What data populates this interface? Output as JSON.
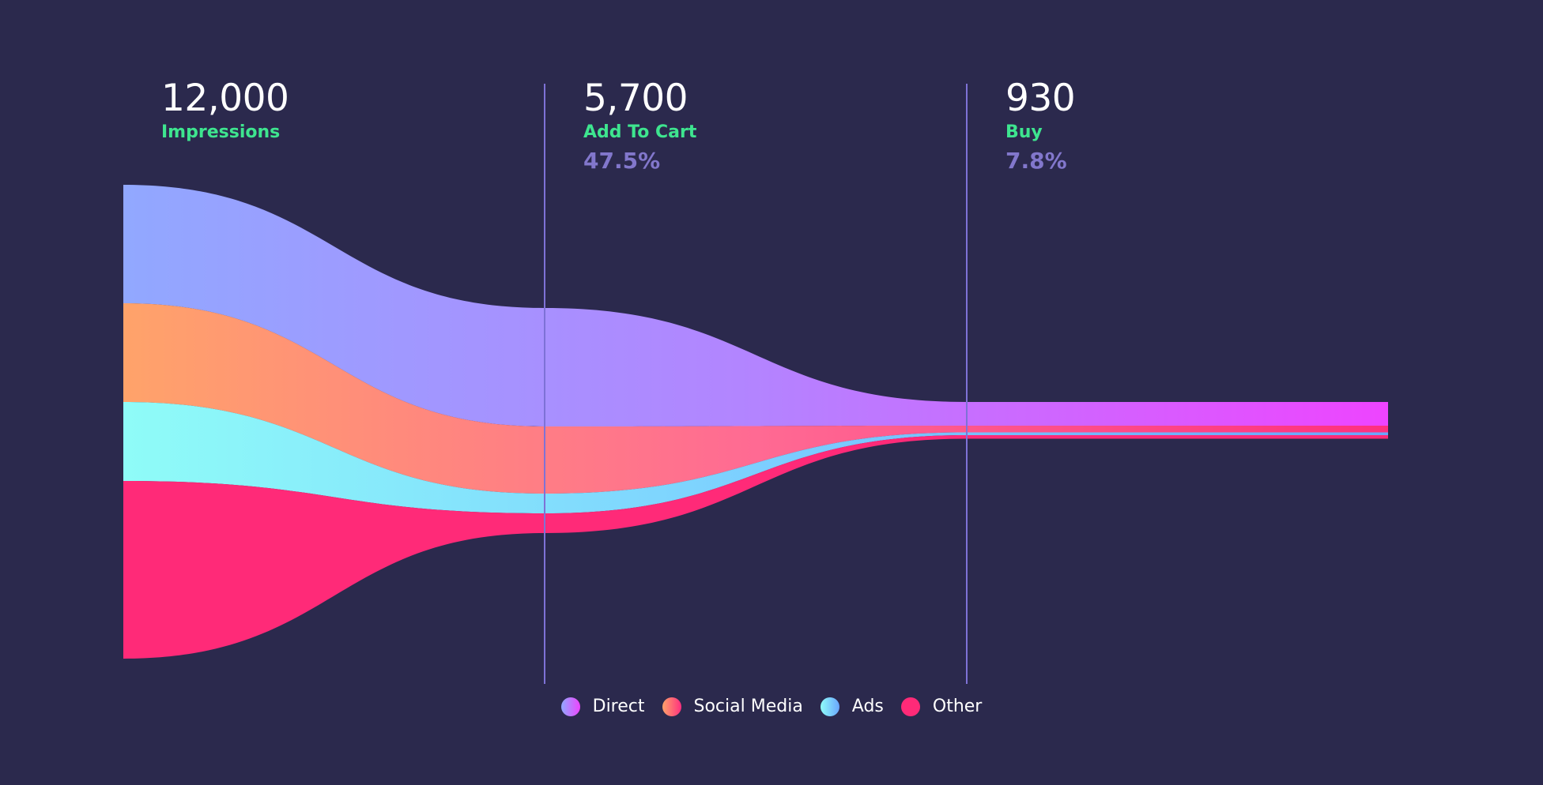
{
  "colors": {
    "background": "#2b294d",
    "divider": "#7e72d6",
    "value_text": "#ffffff",
    "label_text": "#3ee58f",
    "pct_text": "#8277cc",
    "direct": [
      "#91a8ff",
      "#b384ff",
      "#ee44ff"
    ],
    "social": [
      "#ffa36a",
      "#ff6a93",
      "#ff2f7f"
    ],
    "ads": [
      "#8ffcf8",
      "#7ccfff",
      "#6aa6ff"
    ],
    "other": [
      "#ff2a78",
      "#ff2a78",
      "#ff2a78"
    ]
  },
  "stages": [
    {
      "value": "12,000",
      "label": "Impressions",
      "pct": ""
    },
    {
      "value": "5,700",
      "label": "Add To Cart",
      "pct": "47.5%"
    },
    {
      "value": "930",
      "label": "Buy",
      "pct": "7.8%"
    }
  ],
  "legend": [
    {
      "name": "Direct",
      "icon": "direct-dot-icon"
    },
    {
      "name": "Social Media",
      "icon": "social-dot-icon"
    },
    {
      "name": "Ads",
      "icon": "ads-dot-icon"
    },
    {
      "name": "Other",
      "icon": "other-dot-icon"
    }
  ],
  "chart_data": {
    "type": "area",
    "title": "",
    "categories": [
      "Impressions",
      "Add To Cart",
      "Buy"
    ],
    "totals": [
      12000,
      5700,
      930
    ],
    "conversion_pct": [
      "",
      "47.5%",
      "7.8%"
    ],
    "series": [
      {
        "name": "Direct",
        "values": [
          3000,
          3000,
          600
        ]
      },
      {
        "name": "Social Media",
        "values": [
          2500,
          1700,
          170
        ]
      },
      {
        "name": "Ads",
        "values": [
          2000,
          500,
          70
        ]
      },
      {
        "name": "Other",
        "values": [
          4500,
          500,
          90
        ]
      }
    ]
  }
}
